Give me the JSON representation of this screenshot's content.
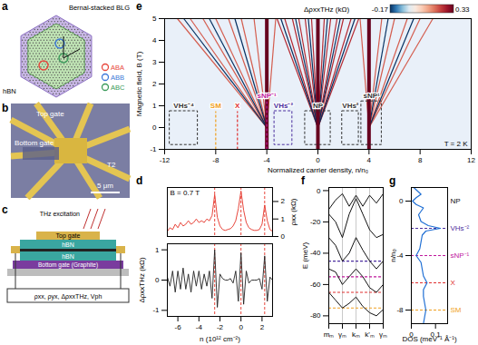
{
  "panels": {
    "a": {
      "panel_label": "a",
      "top_text": "Bernal-stacked BLG",
      "bottom_text": "hBN",
      "stacking_legend": [
        {
          "name": "ABA",
          "color": "#e8463c"
        },
        {
          "name": "ABB",
          "color": "#3c78d8"
        },
        {
          "name": "ABC",
          "color": "#3a9a5a"
        }
      ]
    },
    "b": {
      "panel_label": "b",
      "top_gate": "Top gate",
      "bottom_gate": "Bottom gate",
      "contact": "T2",
      "scale_bar": "5 μm"
    },
    "c": {
      "panel_label": "c",
      "top_gate": "Top gate",
      "hbn_top": "hBN",
      "hbn_bottom": "hBN",
      "bottom_gate": "Bottom gate (Graphite)",
      "excitation": "THz excitation",
      "measurement": "ρxx, ρyx, ΔρxxTHz, Vph"
    }
  },
  "chart_data": [
    {
      "type": "line",
      "panel_label": "d",
      "annotation": "B = 0.7 T",
      "tick_labels": "y",
      "x": [
        -7,
        -6.75,
        -6.5,
        -6.25,
        -6,
        -5.75,
        -5.5,
        -5.25,
        -5,
        -4.75,
        -4.5,
        -4.25,
        -4,
        -3.75,
        -3.5,
        -3.25,
        -3,
        -2.75,
        -2.5,
        -2.25,
        -2,
        -1.75,
        -1.5,
        -1.25,
        -1,
        -0.75,
        -0.5,
        -0.25,
        0,
        0.25,
        0.5,
        0.75,
        1,
        1.25,
        1.5,
        1.75,
        2,
        2.25,
        2.5,
        2.75,
        3
      ],
      "xlim": [
        -7,
        3
      ],
      "y2_label": "ρxx (kΩ)",
      "y2lim": [
        0,
        2.8
      ],
      "y2ticks": [
        0,
        1,
        2
      ],
      "vlines": {
        "x": [
          -2.5,
          0,
          2.25
        ],
        "color": "#e8463c",
        "line_style": "dashed"
      },
      "series": [
        {
          "color": "#e8463c",
          "axis": "y2",
          "values": [
            0.3,
            0.5,
            0.4,
            0.7,
            0.5,
            0.8,
            0.6,
            0.7,
            0.9,
            0.7,
            0.8,
            1.0,
            0.8,
            0.9,
            0.8,
            1.0,
            0.9,
            1.2,
            2.4,
            1.1,
            0.6,
            0.4,
            0.35,
            0.4,
            0.45,
            0.6,
            0.9,
            1.6,
            2.6,
            1.5,
            0.8,
            0.5,
            0.4,
            0.35,
            0.35,
            0.4,
            0.7,
            1.8,
            0.9,
            0.4,
            0.3
          ]
        }
      ]
    },
    {
      "type": "line",
      "x": [
        -7,
        -6.75,
        -6.5,
        -6.25,
        -6,
        -5.75,
        -5.5,
        -5.25,
        -5,
        -4.75,
        -4.5,
        -4.25,
        -4,
        -3.75,
        -3.5,
        -3.25,
        -3,
        -2.75,
        -2.5,
        -2.25,
        -2,
        -1.75,
        -1.5,
        -1.25,
        -1,
        -0.75,
        -0.5,
        -0.25,
        0,
        0.25,
        0.5,
        0.75,
        1,
        1.25,
        1.5,
        1.75,
        2,
        2.25,
        2.5,
        2.75,
        3
      ],
      "xlim": [
        -7,
        3
      ],
      "xticks": [
        -6,
        -4,
        -2,
        0,
        2
      ],
      "x_label": "n (10¹² cm⁻²)",
      "ylim": [
        -1.2,
        1.2
      ],
      "yticks": [
        -1,
        0,
        1
      ],
      "y_label": "ΔρxxTHz (kΩ)",
      "vlines": {
        "x": [
          -2.5,
          0,
          2.25
        ],
        "color": "#e8463c",
        "line_style": "dashed"
      },
      "series": [
        {
          "color": "#222222",
          "values": [
            0.1,
            -0.2,
            0.3,
            -0.4,
            0.3,
            -0.3,
            0.4,
            -0.3,
            0.2,
            -0.4,
            0.3,
            -0.2,
            0.3,
            -0.3,
            0.2,
            -0.2,
            0.3,
            -0.6,
            1.0,
            -0.9,
            0.2,
            0.05,
            0,
            0,
            0.05,
            -0.1,
            0.3,
            -0.7,
            0.9,
            -0.8,
            0.3,
            -0.1,
            0,
            0,
            0,
            0.05,
            -0.3,
            0.8,
            -0.7,
            0.1,
            0
          ]
        }
      ]
    },
    {
      "type": "heatmap",
      "panel_label": "e",
      "annotation": "T = 2 K",
      "x_label": "Normalized carrier density, n/n₀",
      "xlim": [
        -12,
        12
      ],
      "xticks": [
        -12,
        -8,
        -4,
        0,
        4,
        8,
        12
      ],
      "y_label": "Magnetic field, B (T)",
      "ylim": [
        -1,
        5
      ],
      "yticks": [
        -1,
        0,
        1,
        2,
        3,
        4,
        5
      ],
      "colorbar": {
        "label": "ΔρxxTHz (kΩ)",
        "range": [
          -0.17,
          0.33
        ],
        "ticks": [
          -0.17,
          0.33
        ]
      },
      "segments": [
        {
          "x": [
            0,
            -3.2
          ],
          "y": [
            0,
            5
          ],
          "value": 0.25
        },
        {
          "x": [
            0,
            -2.6
          ],
          "y": [
            0,
            5
          ],
          "value": 0.25
        },
        {
          "x": [
            0,
            -2.0
          ],
          "y": [
            0,
            5
          ],
          "value": 0.25
        },
        {
          "x": [
            0,
            -1.5
          ],
          "y": [
            0,
            5
          ],
          "value": 0.25
        },
        {
          "x": [
            0,
            -1.0
          ],
          "y": [
            0,
            5
          ],
          "value": 0.25
        },
        {
          "x": [
            0,
            -0.5
          ],
          "y": [
            0,
            5
          ],
          "value": 0.25
        },
        {
          "x": [
            0,
            0.5
          ],
          "y": [
            0,
            5
          ],
          "value": 0.25
        },
        {
          "x": [
            0,
            1.0
          ],
          "y": [
            0,
            5
          ],
          "value": 0.25
        },
        {
          "x": [
            0,
            1.5
          ],
          "y": [
            0,
            5
          ],
          "value": 0.25
        },
        {
          "x": [
            0,
            2.0
          ],
          "y": [
            0,
            5
          ],
          "value": 0.25
        },
        {
          "x": [
            0,
            2.6
          ],
          "y": [
            0,
            5
          ],
          "value": 0.25
        },
        {
          "x": [
            0,
            3.2
          ],
          "y": [
            0,
            5
          ],
          "value": 0.25
        },
        {
          "x": [
            0,
            -2.9
          ],
          "y": [
            0,
            5
          ],
          "value": -0.17
        },
        {
          "x": [
            0,
            -1.75
          ],
          "y": [
            0,
            5
          ],
          "value": -0.17
        },
        {
          "x": [
            0,
            -0.75
          ],
          "y": [
            0,
            5
          ],
          "value": -0.17
        },
        {
          "x": [
            0,
            0.75
          ],
          "y": [
            0,
            5
          ],
          "value": -0.17
        },
        {
          "x": [
            0,
            1.75
          ],
          "y": [
            0,
            5
          ],
          "value": -0.17
        },
        {
          "x": [
            0,
            2.9
          ],
          "y": [
            0,
            5
          ],
          "value": -0.17
        },
        {
          "x": [
            -4,
            -11
          ],
          "y": [
            0,
            5
          ],
          "value": 0.2
        },
        {
          "x": [
            -4,
            -10
          ],
          "y": [
            0,
            5
          ],
          "value": 0.2
        },
        {
          "x": [
            -4,
            -9
          ],
          "y": [
            0,
            5
          ],
          "value": 0.2
        },
        {
          "x": [
            -4,
            -8
          ],
          "y": [
            0,
            5
          ],
          "value": 0.2
        },
        {
          "x": [
            -4,
            -7
          ],
          "y": [
            0,
            5
          ],
          "value": 0.2
        },
        {
          "x": [
            -4,
            -6
          ],
          "y": [
            0,
            5
          ],
          "value": 0.2
        },
        {
          "x": [
            -4,
            -5
          ],
          "y": [
            0,
            5
          ],
          "value": 0.2
        },
        {
          "x": [
            -4,
            -3.3
          ],
          "y": [
            0,
            5
          ],
          "value": 0.2
        },
        {
          "x": [
            -4,
            -10.5
          ],
          "y": [
            0,
            5
          ],
          "value": -0.17
        },
        {
          "x": [
            -4,
            -8.5
          ],
          "y": [
            0,
            5
          ],
          "value": -0.17
        },
        {
          "x": [
            -4,
            -6.5
          ],
          "y": [
            0,
            5
          ],
          "value": -0.17
        },
        {
          "x": [
            4,
            3.3
          ],
          "y": [
            0,
            5
          ],
          "value": 0.2
        },
        {
          "x": [
            4,
            5
          ],
          "y": [
            0,
            5
          ],
          "value": 0.2
        },
        {
          "x": [
            4,
            6
          ],
          "y": [
            0,
            5
          ],
          "value": 0.2
        },
        {
          "x": [
            4,
            7
          ],
          "y": [
            0,
            5
          ],
          "value": 0.2
        },
        {
          "x": [
            4,
            8
          ],
          "y": [
            0,
            5
          ],
          "value": 0.2
        },
        {
          "x": [
            4,
            9
          ],
          "y": [
            0,
            5
          ],
          "value": 0.2
        },
        {
          "x": [
            4,
            5.5
          ],
          "y": [
            0,
            5
          ],
          "value": -0.17
        },
        {
          "x": [
            4,
            7.5
          ],
          "y": [
            0,
            5
          ],
          "value": -0.17
        },
        {
          "x": [
            -4,
            -4
          ],
          "y": [
            -1,
            5
          ],
          "value": 0.33
        },
        {
          "x": [
            0,
            0
          ],
          "y": [
            -1,
            5
          ],
          "value": 0.33
        },
        {
          "x": [
            4,
            4
          ],
          "y": [
            -1,
            5
          ],
          "value": 0.33
        }
      ],
      "features": [
        {
          "label": "VHs⁻⁴",
          "x": [
            -11.6,
            -9.4
          ],
          "y": [
            -0.8,
            0.75
          ],
          "color": "#333333"
        },
        {
          "label": "SM",
          "x": [
            -8,
            -8
          ],
          "y": [
            -1,
            0.75
          ],
          "color": "#f0a020"
        },
        {
          "label": "X",
          "x": [
            -6.3,
            -6.3
          ],
          "y": [
            -1,
            0.75
          ],
          "color": "#e03030"
        },
        {
          "label": "sNP⁻¹",
          "x": [
            -4,
            -4
          ],
          "y": [
            -1,
            1.2
          ],
          "color": "#c0189c"
        },
        {
          "label": "VHs⁻²",
          "x": [
            -3.4,
            -2.0
          ],
          "y": [
            -0.8,
            0.75
          ],
          "color": "#4b2e9e"
        },
        {
          "label": "NP",
          "x": [
            -1,
            1
          ],
          "y": [
            -0.8,
            0.75
          ],
          "color": "#333333"
        },
        {
          "label": "VHs²",
          "x": [
            1.9,
            3.2
          ],
          "y": [
            -0.8,
            0.75
          ],
          "color": "#333333"
        },
        {
          "label": "sNP¹",
          "x": [
            3.4,
            5.0
          ],
          "y": [
            -0.8,
            1.2
          ],
          "color": "#333333"
        }
      ]
    },
    {
      "type": "line",
      "panel_label": "f",
      "grid": "x",
      "x": [
        0,
        0.5,
        1,
        1.5,
        2,
        2.5,
        3,
        3.5,
        4
      ],
      "xlim": [
        0,
        4
      ],
      "xticks": [
        {
          "value": 0,
          "label": "mₘ"
        },
        {
          "value": 1,
          "label": "γₘ"
        },
        {
          "value": 2,
          "label": "kₘ"
        },
        {
          "value": 3,
          "label": "k'ₘ"
        },
        {
          "value": 4,
          "label": "γₘ"
        }
      ],
      "y_label": "E (meV)",
      "ylim": [
        -85,
        2
      ],
      "yticks": [
        0,
        -20,
        -40,
        -60,
        -80
      ],
      "hlines": [
        {
          "y": -45,
          "color": "#4b2e9e",
          "line_style": "dashed"
        },
        {
          "y": -55,
          "color": "#c0189c",
          "line_style": "dashed"
        },
        {
          "y": -65,
          "color": "#e03030",
          "line_style": "dashed"
        },
        {
          "y": -75,
          "color": "#f0a020",
          "line_style": "dashed"
        }
      ],
      "series": [
        {
          "color": "#111111",
          "values": [
            -12,
            -6,
            -2,
            -10,
            -3,
            -10,
            -3,
            -8,
            -2
          ]
        },
        {
          "color": "#111111",
          "values": [
            -15,
            -20,
            -30,
            -15,
            -5,
            -15,
            -25,
            -30,
            -28
          ]
        },
        {
          "color": "#111111",
          "values": [
            -30,
            -35,
            -45,
            -40,
            -30,
            -38,
            -45,
            -50,
            -45
          ]
        },
        {
          "color": "#111111",
          "values": [
            -50,
            -52,
            -60,
            -55,
            -50,
            -55,
            -62,
            -65,
            -60
          ]
        },
        {
          "color": "#111111",
          "values": [
            -65,
            -70,
            -75,
            -72,
            -68,
            -74,
            -78,
            -80,
            -76
          ]
        }
      ]
    },
    {
      "type": "line",
      "panel_label": "g",
      "x_label": "DOS (meV⁻¹ Å⁻¹)",
      "xlim": [
        0,
        0.15
      ],
      "xticks": [
        0,
        0.1
      ],
      "y_label": "n/n₀",
      "ylim": [
        -9,
        1
      ],
      "yticks": [
        0,
        -4,
        -8
      ],
      "color": "#1f6fd4",
      "y": [
        1,
        0.5,
        0.25,
        0,
        -0.25,
        -0.5,
        -1,
        -1.5,
        -1.8,
        -2,
        -2.2,
        -2.5,
        -3,
        -3.5,
        -4,
        -4.5,
        -5,
        -5.5,
        -6,
        -6.5,
        -7,
        -7.5,
        -8,
        -8.5,
        -9
      ],
      "values": [
        0.01,
        0.04,
        0.02,
        0.005,
        0.02,
        0.05,
        0.03,
        0.04,
        0.07,
        0.12,
        0.06,
        0.045,
        0.04,
        0.035,
        0.02,
        0.04,
        0.045,
        0.05,
        0.065,
        0.05,
        0.05,
        0.055,
        0.06,
        0.055,
        0.05
      ],
      "hlines": [
        {
          "y": 0,
          "name": "NP",
          "color": "#111111",
          "line_style": "none"
        },
        {
          "y": -2,
          "name": "VHs⁻²",
          "color": "#4b2e9e",
          "line_style": "dashed"
        },
        {
          "y": -4,
          "name": "sNP⁻¹",
          "color": "#c0189c",
          "line_style": "dashed"
        },
        {
          "y": -6,
          "name": "X",
          "color": "#e03030",
          "line_style": "dashed"
        },
        {
          "y": -8,
          "name": "SM",
          "color": "#f0a020",
          "line_style": "dashed"
        }
      ]
    }
  ]
}
